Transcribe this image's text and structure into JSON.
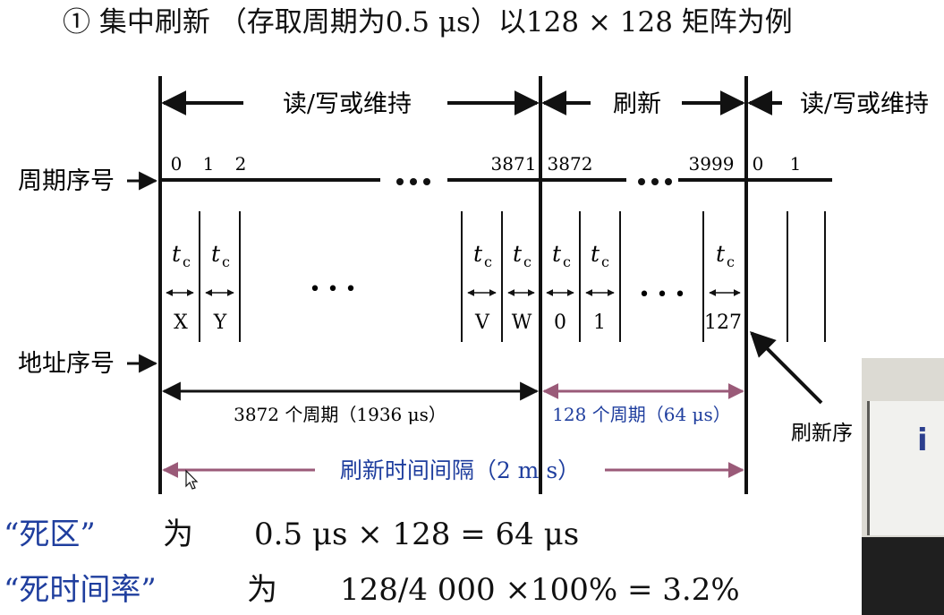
{
  "title": "① 集中刷新 （存取周期为0.5 μs）以128 × 128 矩阵为例",
  "top_labels": {
    "rw1": "读/写或维持",
    "refresh": "刷新",
    "rw2": "读/写或维持"
  },
  "row_labels": {
    "cycle": "周期序号",
    "address": "地址序号"
  },
  "cycle_numbers": [
    "0",
    "1",
    "2",
    "3871",
    "3872",
    "3999",
    "0",
    "1"
  ],
  "tc": "t",
  "tc_sub": "c",
  "address_cells": [
    "X",
    "Y",
    "V",
    "W",
    "0",
    "1",
    "127"
  ],
  "ellipsis": "• • •",
  "span_labels": {
    "rw_cycles": "3872 个周期（1936 μs）",
    "refresh_cycles": "128 个周期（64 μs）",
    "interval": "刷新时间间隔（2 m s）"
  },
  "pointer_label": "刷新序",
  "dead_zone": {
    "label": "“死区”",
    "is": "为",
    "formula": "0.5 μs × 128 = 64 μs"
  },
  "dead_ratio": {
    "label": "“死时间率”",
    "is": "为",
    "formula": "128/4 000 ×100% = 3.2%"
  },
  "colors": {
    "text": "#111111",
    "blue": "#1f3e9e",
    "mauve": "#9a5a78"
  }
}
